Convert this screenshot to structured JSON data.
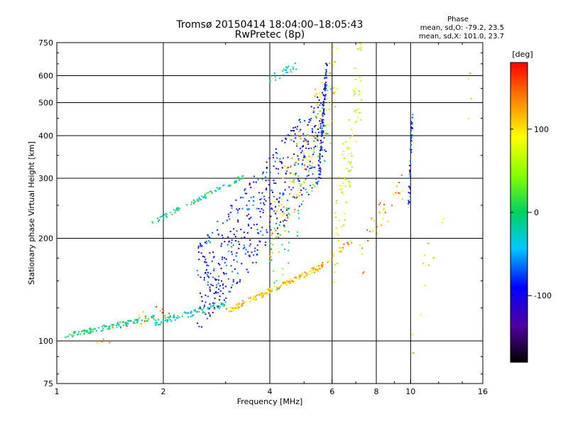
{
  "chart_data": {
    "type": "scatter",
    "title": "Tromsø 20150414 18:04:00–18:05:43",
    "subtitle": "RwPretec (8p)",
    "xlabel": "Frequency [MHz]",
    "ylabel": "Stationary phase Virtual Height [km]",
    "x_scale": "log",
    "y_scale": "log",
    "xlim": [
      1,
      16
    ],
    "ylim": [
      75,
      750
    ],
    "x_ticks": [
      1,
      2,
      4,
      6,
      8,
      10,
      16
    ],
    "x_tick_labels": [
      "1",
      "2",
      "4",
      "6",
      "8",
      "10",
      "16"
    ],
    "y_ticks": [
      75,
      100,
      200,
      300,
      400,
      500,
      600,
      750
    ],
    "y_tick_labels": [
      "75",
      "100",
      "200",
      "300",
      "400",
      "500",
      "600",
      "750"
    ],
    "grid": true,
    "phase_info": {
      "header": "Phase",
      "line_o": "mean, sd,O: -79.2, 23.5",
      "line_x": "mean, sd,X: 101.0, 23.7"
    },
    "colorbar": {
      "label": "[deg]",
      "range": [
        -180,
        180
      ],
      "tick_values": [
        100,
        0,
        -100
      ],
      "tick_labels": [
        "100",
        "0",
        "-100"
      ]
    },
    "clusters": [
      {
        "x": [
          1.05,
          1.9
        ],
        "y_start": [
          103,
          118
        ],
        "phase": -10,
        "count": 120,
        "jitter_y": 0.018
      },
      {
        "x": [
          1.3,
          2.2
        ],
        "y_start": [
          100,
          128
        ],
        "phase": 130,
        "count": 22,
        "jitter_y": 0.06
      },
      {
        "x": [
          1.9,
          3.0
        ],
        "y_start": [
          113,
          128
        ],
        "phase": -15,
        "count": 90,
        "jitter_y": 0.02
      },
      {
        "x": [
          3.0,
          5.6
        ],
        "y_start": [
          122,
          165
        ],
        "phase": 110,
        "count": 160,
        "jitter_y": 0.018
      },
      {
        "x": [
          5.4,
          6.9
        ],
        "y_start": [
          160,
          200
        ],
        "phase": 115,
        "count": 30,
        "jitter_y": 0.02
      },
      {
        "x": [
          1.85,
          3.4
        ],
        "y_start": [
          222,
          305
        ],
        "phase": -10,
        "count": 85,
        "jitter_y": 0.015
      },
      {
        "x": [
          2.5,
          5.8
        ],
        "y_start": [
          140,
          420
        ],
        "phase": -90,
        "count": 520,
        "jitter_y": 0.3
      },
      {
        "x": [
          4.0,
          6.2
        ],
        "y_start": [
          200,
          620
        ],
        "phase": 115,
        "count": 110,
        "jitter_y": 0.25
      },
      {
        "x": [
          4.0,
          6.0
        ],
        "y_start": [
          150,
          500
        ],
        "phase": 20,
        "count": 70,
        "jitter_y": 0.25
      },
      {
        "x": [
          5.5,
          5.8
        ],
        "y_start": [
          300,
          650
        ],
        "phase": -95,
        "count": 90,
        "jitter_y": 0.05
      },
      {
        "x": [
          4.0,
          4.8
        ],
        "y_start": [
          590,
          640
        ],
        "phase": -20,
        "count": 25,
        "jitter_y": 0.03
      },
      {
        "x": [
          6.1,
          7.3
        ],
        "y_start": [
          190,
          660
        ],
        "phase": 80,
        "count": 100,
        "jitter_y": 0.3
      },
      {
        "x": [
          7.2,
          9.5
        ],
        "y_start": [
          170,
          300
        ],
        "phase": 120,
        "count": 35,
        "jitter_y": 0.15
      },
      {
        "x": [
          9.9,
          10.1
        ],
        "y_start": [
          250,
          460
        ],
        "phase": -90,
        "count": 40,
        "jitter_y": 0.02
      },
      {
        "x": [
          10.0,
          15.0
        ],
        "y_start": [
          100,
          600
        ],
        "phase": 100,
        "count": 15,
        "jitter_y": 0.2
      }
    ]
  }
}
